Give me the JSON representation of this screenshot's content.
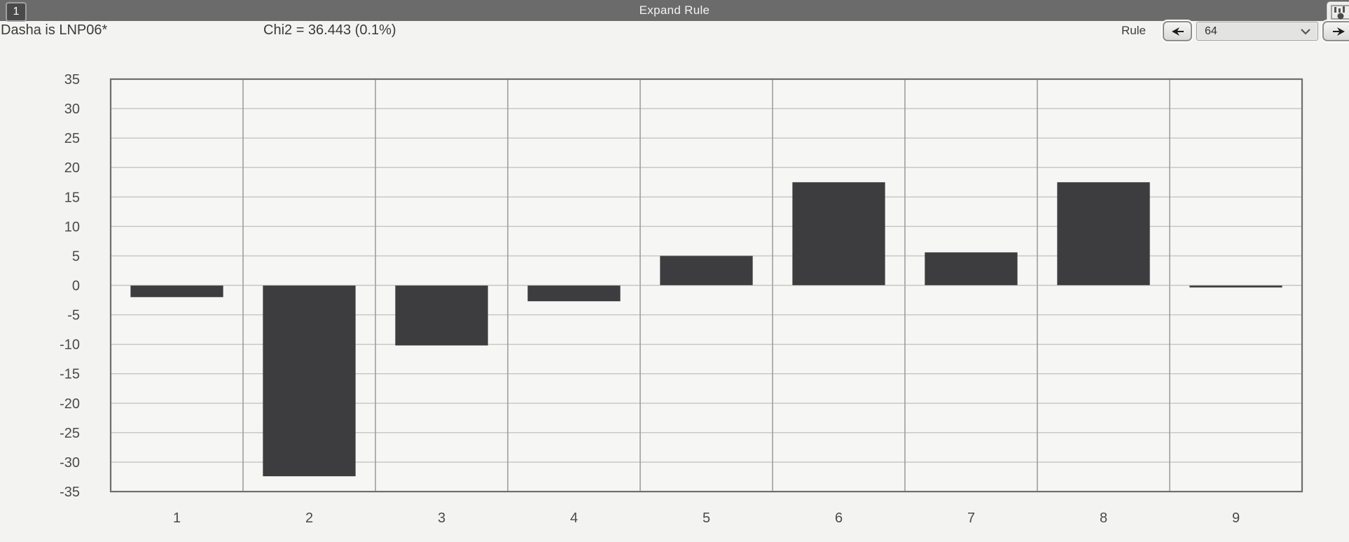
{
  "titlebar": {
    "title": "Expand Rule",
    "tab_label": "1"
  },
  "header": {
    "rule_description": "Dasha is LNP06*",
    "chi_squared": "Chi2 = 36.443 (0.1%)",
    "rule_label": "Rule",
    "rule_number": "64"
  },
  "icons": {
    "prev": "left-arrow-icon",
    "next": "right-arrow-icon",
    "dropdown": "chevron-down-icon",
    "corner": "mini-chart-icon"
  },
  "colors": {
    "titlebar_bg": "#6b6b6b",
    "page_bg": "#f3f3f1",
    "plot_bg": "#f6f6f4",
    "bar_fill": "#3d3d3f",
    "h_gridline": "#c4c4c2",
    "v_gridline": "#9e9e9c",
    "axis_border": "#6e6e6c",
    "tick_text": "#4a4a4a"
  },
  "chart_data": {
    "type": "bar",
    "title": "",
    "xlabel": "",
    "ylabel": "",
    "categories": [
      "1",
      "2",
      "3",
      "4",
      "5",
      "6",
      "7",
      "8",
      "9"
    ],
    "values": [
      -2,
      -32.4,
      -10.2,
      -2.7,
      5.0,
      17.5,
      5.6,
      17.5,
      -0.3
    ],
    "ylim": [
      -35,
      35
    ],
    "ytick_step": 5,
    "grid": true,
    "legend": false
  }
}
